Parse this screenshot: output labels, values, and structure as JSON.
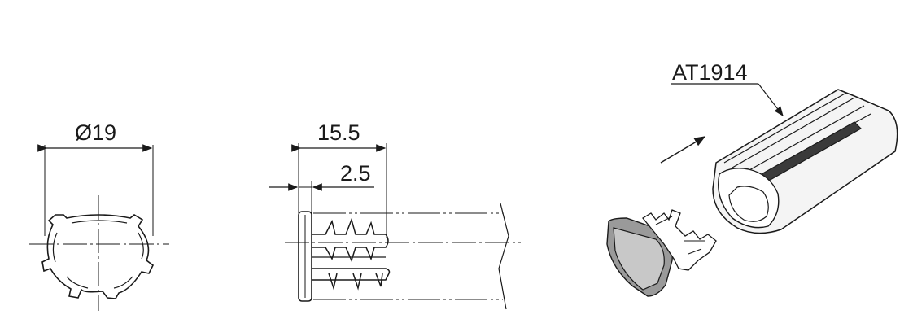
{
  "labels": {
    "diameter": "Ø19",
    "length_total": "15.5",
    "length_flange": "2.5",
    "part_number": "AT1914"
  },
  "colors": {
    "line": "#1a1a1a",
    "part_fill": "#9a9a9a",
    "part_face": "#c8c8c8",
    "profile_fill": "#f4f4f4"
  }
}
